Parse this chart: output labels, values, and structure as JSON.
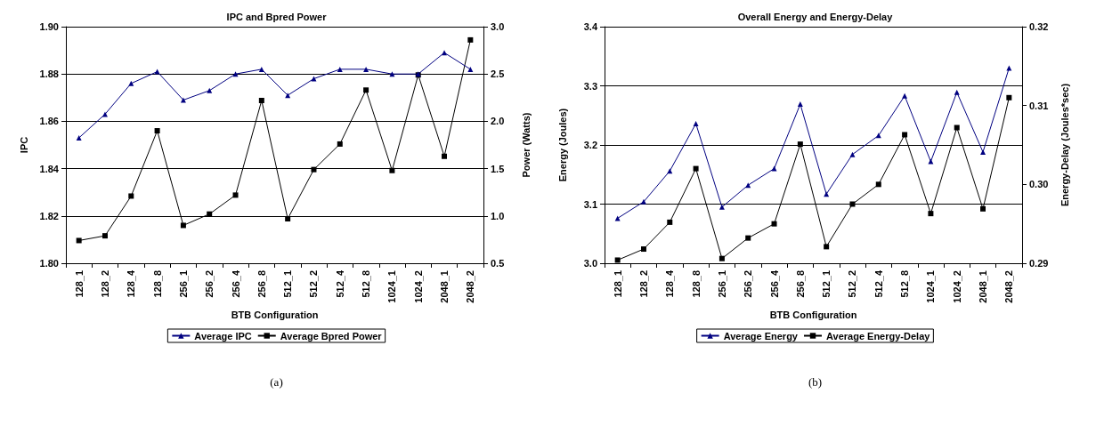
{
  "chart_data": [
    {
      "type": "line",
      "title": "IPC and Bpred Power",
      "xlabel": "BTB Configuration",
      "ylabel": "IPC",
      "y2label": "Power (Watts)",
      "categories": [
        "128_1",
        "128_2",
        "128_4",
        "128_8",
        "256_1",
        "256_2",
        "256_4",
        "256_8",
        "512_1",
        "512_2",
        "512_4",
        "512_8",
        "1024_1",
        "1024_2",
        "2048_1",
        "2048_2"
      ],
      "series": [
        {
          "name": "Average IPC",
          "color": "#000080",
          "marker": "triangle",
          "values": [
            1.853,
            1.863,
            1.876,
            1.881,
            1.869,
            1.873,
            1.88,
            1.882,
            1.871,
            1.878,
            1.882,
            1.882,
            1.88,
            1.88,
            1.889,
            1.882
          ]
        },
        {
          "name": "Average Bpred Power",
          "color": "#000000",
          "marker": "square",
          "axis": "y2",
          "values": [
            0.74,
            0.79,
            1.21,
            1.9,
            0.9,
            1.02,
            1.22,
            2.22,
            0.97,
            1.49,
            1.76,
            2.33,
            1.48,
            2.49,
            1.63,
            2.86
          ]
        }
      ],
      "ylim": [
        1.8,
        1.9
      ],
      "yticks": [
        {
          "value": 1.8,
          "label": "1.80"
        },
        1.82,
        1.84,
        1.86,
        1.88,
        {
          "value": 1.9,
          "label": "1.90"
        }
      ],
      "y2lim": [
        0.5,
        3.0
      ],
      "y2ticks": [
        0.5,
        {
          "value": 1.0,
          "label": "1.0"
        },
        1.5,
        {
          "value": 2.0,
          "label": "2.0"
        },
        2.5,
        {
          "value": 3.0,
          "label": "3.0"
        }
      ],
      "grid": "y",
      "legend": "bottom",
      "line_style": "solid",
      "annotations": [
        "(a)"
      ]
    },
    {
      "type": "line",
      "title": "Overall Energy and Energy-Delay",
      "xlabel": "BTB Configuration",
      "ylabel": "Energy (Joules)",
      "y2label": "Energy-Delay (Joules*sec)",
      "categories": [
        "128_1",
        "128_2",
        "128_4",
        "128_8",
        "256_1",
        "256_2",
        "256_4",
        "256_8",
        "512_1",
        "512_2",
        "512_4",
        "512_8",
        "1024_1",
        "1024_2",
        "2048_1",
        "2048_2"
      ],
      "series": [
        {
          "name": "Average Energy",
          "color": "#000080",
          "marker": "triangle",
          "values": [
            3.076,
            3.104,
            3.156,
            3.236,
            3.095,
            3.132,
            3.16,
            3.269,
            3.117,
            3.184,
            3.216,
            3.283,
            3.172,
            3.289,
            3.188,
            3.33
          ]
        },
        {
          "name": "Average Energy-Delay",
          "color": "#000000",
          "marker": "square",
          "axis": "y2",
          "values": [
            0.2904,
            0.2918,
            0.2952,
            0.302,
            0.2906,
            0.2932,
            0.295,
            0.3051,
            0.2921,
            0.2975,
            0.3,
            0.3063,
            0.2963,
            0.3072,
            0.2969,
            0.311
          ]
        }
      ],
      "ylim": [
        3.0,
        3.4
      ],
      "yticks": [
        {
          "value": 3.0,
          "label": "3.0"
        },
        3.1,
        3.2,
        3.3,
        3.4
      ],
      "y2lim": [
        0.29,
        0.32
      ],
      "y2ticks": [
        0.29,
        {
          "value": 0.3,
          "label": "0.30"
        },
        0.31,
        0.32
      ],
      "grid": "y",
      "legend": "bottom",
      "line_style": "solid",
      "annotations": [
        "(b)"
      ]
    }
  ]
}
